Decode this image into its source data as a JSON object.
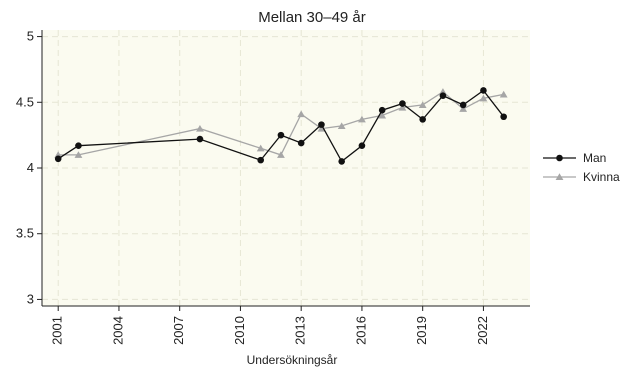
{
  "chart_data": {
    "type": "line",
    "title": "Mellan 30–49 år",
    "xlabel": "Undersökningsår",
    "ylabel": "",
    "xlim": [
      2000.2,
      2024.3
    ],
    "ylim": [
      2.95,
      5.05
    ],
    "x_ticks": [
      2001,
      2004,
      2007,
      2010,
      2013,
      2016,
      2019,
      2022
    ],
    "y_ticks": [
      3,
      3.5,
      4,
      4.5,
      5
    ],
    "y_tick_labels": [
      "3",
      "3.5",
      "4",
      "4.5",
      "5"
    ],
    "grid": true,
    "legend_position": "right",
    "series": [
      {
        "name": "Man",
        "color": "#111111",
        "marker": "circle",
        "points": [
          [
            2001,
            4.07
          ],
          [
            2002,
            4.17
          ],
          [
            2008,
            4.22
          ],
          [
            2011,
            4.06
          ],
          [
            2012,
            4.25
          ],
          [
            2013,
            4.19
          ],
          [
            2014,
            4.33
          ],
          [
            2015,
            4.05
          ],
          [
            2016,
            4.17
          ],
          [
            2017,
            4.44
          ],
          [
            2018,
            4.49
          ],
          [
            2019,
            4.37
          ],
          [
            2020,
            4.55
          ],
          [
            2021,
            4.48
          ],
          [
            2022,
            4.59
          ],
          [
            2023,
            4.39
          ]
        ]
      },
      {
        "name": "Kvinna",
        "color": "#a6a6a6",
        "marker": "triangle",
        "points": [
          [
            2001,
            4.1
          ],
          [
            2002,
            4.1
          ],
          [
            2008,
            4.3
          ],
          [
            2011,
            4.15
          ],
          [
            2012,
            4.1
          ],
          [
            2013,
            4.41
          ],
          [
            2014,
            4.3
          ],
          [
            2015,
            4.32
          ],
          [
            2016,
            4.37
          ],
          [
            2017,
            4.4
          ],
          [
            2018,
            4.46
          ],
          [
            2019,
            4.48
          ],
          [
            2020,
            4.58
          ],
          [
            2021,
            4.45
          ],
          [
            2022,
            4.53
          ],
          [
            2023,
            4.56
          ]
        ]
      }
    ]
  }
}
